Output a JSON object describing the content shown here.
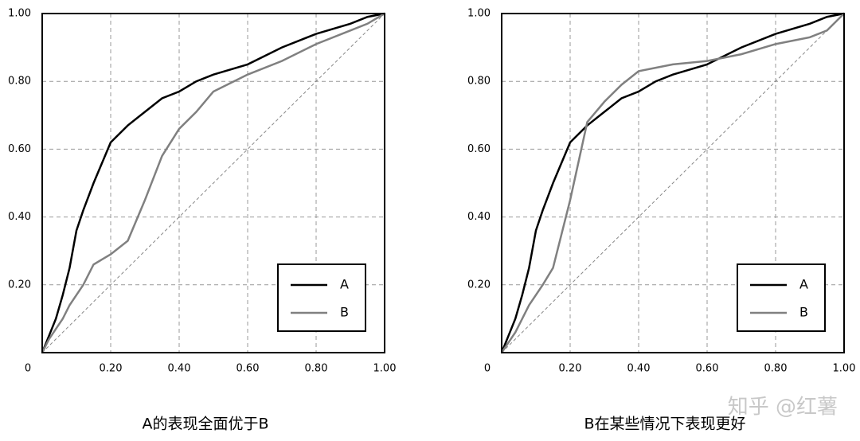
{
  "chart_data": [
    {
      "type": "line",
      "caption": "A的表现全面优于B",
      "x": [
        0,
        0.02,
        0.04,
        0.06,
        0.08,
        0.1,
        0.12,
        0.15,
        0.2,
        0.25,
        0.3,
        0.35,
        0.4,
        0.45,
        0.5,
        0.6,
        0.7,
        0.8,
        0.9,
        0.95,
        1.0
      ],
      "series": [
        {
          "name": "A",
          "color": "#000000",
          "values": [
            0,
            0.05,
            0.1,
            0.17,
            0.25,
            0.36,
            0.42,
            0.5,
            0.62,
            0.67,
            0.71,
            0.75,
            0.77,
            0.8,
            0.82,
            0.85,
            0.9,
            0.94,
            0.97,
            0.99,
            1.0
          ]
        },
        {
          "name": "B",
          "color": "#808080",
          "values": [
            0,
            0.04,
            0.07,
            0.1,
            0.14,
            0.17,
            0.2,
            0.26,
            0.29,
            0.33,
            0.45,
            0.58,
            0.66,
            0.71,
            0.77,
            0.82,
            0.86,
            0.91,
            0.95,
            0.97,
            1.0
          ]
        }
      ],
      "xlim": [
        0,
        1
      ],
      "ylim": [
        0,
        1
      ],
      "xticks": [
        0,
        {
          "value": 0.2,
          "label": "0.20"
        },
        {
          "value": 0.4,
          "label": "0.40"
        },
        {
          "value": 0.6,
          "label": "0.60"
        },
        {
          "value": 0.8,
          "label": "0.80"
        },
        {
          "value": 1.0,
          "label": "1.00"
        }
      ],
      "yticks": [
        {
          "value": 0.2,
          "label": "0.20"
        },
        {
          "value": 0.4,
          "label": "0.40"
        },
        {
          "value": 0.6,
          "label": "0.60"
        },
        {
          "value": 0.8,
          "label": "0.80"
        },
        {
          "value": 1.0,
          "label": "1.00"
        }
      ],
      "grid": true,
      "legend": "lower right"
    },
    {
      "type": "line",
      "caption": "B在某些情况下表现更好",
      "x": [
        0,
        0.02,
        0.04,
        0.06,
        0.08,
        0.1,
        0.12,
        0.15,
        0.2,
        0.25,
        0.3,
        0.35,
        0.4,
        0.45,
        0.5,
        0.6,
        0.7,
        0.8,
        0.9,
        0.95,
        1.0
      ],
      "series": [
        {
          "name": "A",
          "color": "#000000",
          "values": [
            0,
            0.05,
            0.1,
            0.17,
            0.25,
            0.36,
            0.42,
            0.5,
            0.62,
            0.67,
            0.71,
            0.75,
            0.77,
            0.8,
            0.82,
            0.85,
            0.9,
            0.94,
            0.97,
            0.99,
            1.0
          ]
        },
        {
          "name": "B",
          "color": "#808080",
          "values": [
            0,
            0.03,
            0.06,
            0.1,
            0.14,
            0.17,
            0.2,
            0.25,
            0.45,
            0.68,
            0.74,
            0.79,
            0.83,
            0.84,
            0.85,
            0.86,
            0.88,
            0.91,
            0.93,
            0.95,
            1.0
          ]
        }
      ],
      "xlim": [
        0,
        1
      ],
      "ylim": [
        0,
        1
      ],
      "xticks": [
        0,
        {
          "value": 0.2,
          "label": "0.20"
        },
        {
          "value": 0.4,
          "label": "0.40"
        },
        {
          "value": 0.6,
          "label": "0.60"
        },
        {
          "value": 0.8,
          "label": "0.80"
        },
        {
          "value": 1.0,
          "label": "1.00"
        }
      ],
      "yticks": [
        {
          "value": 0.2,
          "label": "0.20"
        },
        {
          "value": 0.4,
          "label": "0.40"
        },
        {
          "value": 0.6,
          "label": "0.60"
        },
        {
          "value": 0.8,
          "label": "0.80"
        },
        {
          "value": 1.0,
          "label": "1.00"
        }
      ],
      "grid": true,
      "legend": "lower right"
    }
  ],
  "watermark": "知乎 @红薯"
}
